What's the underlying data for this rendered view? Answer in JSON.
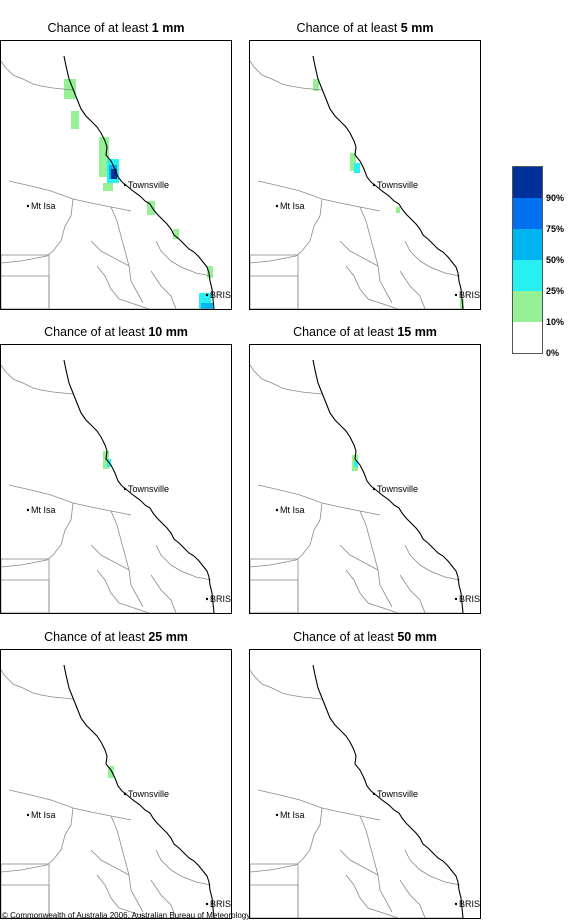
{
  "panels": [
    {
      "title_prefix": "Chance of at least ",
      "amount": "1 mm"
    },
    {
      "title_prefix": "Chance of at least ",
      "amount": "5 mm"
    },
    {
      "title_prefix": "Chance of at least ",
      "amount": "10 mm"
    },
    {
      "title_prefix": "Chance of at least ",
      "amount": "15 mm"
    },
    {
      "title_prefix": "Chance of at least ",
      "amount": "25 mm"
    },
    {
      "title_prefix": "Chance of at least ",
      "amount": "50 mm"
    }
  ],
  "places": {
    "townsville": "Townsville",
    "mt_isa": "Mt Isa",
    "brisbane": "BRIS"
  },
  "legend": {
    "labels": [
      "90%",
      "75%",
      "50%",
      "25%",
      "10%",
      "0%"
    ],
    "colors": [
      "#00309a",
      "#0070f0",
      "#00b4f0",
      "#28f0f0",
      "#96f096",
      "#ffffff"
    ]
  },
  "copyright": "© Commonwealth of Australia 2006, Australian Bureau of Meteorology"
}
